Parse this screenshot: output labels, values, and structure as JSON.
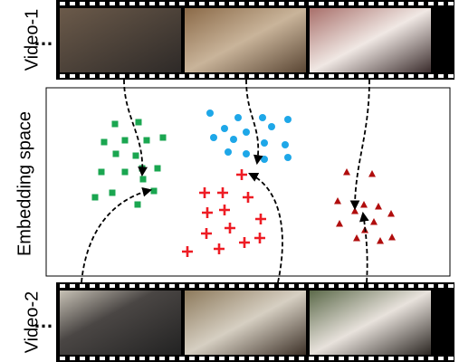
{
  "labels": {
    "video1": "Video-1",
    "video2": "Video-2",
    "embedding": "Embedding space",
    "ellipsis": "…"
  }
}
